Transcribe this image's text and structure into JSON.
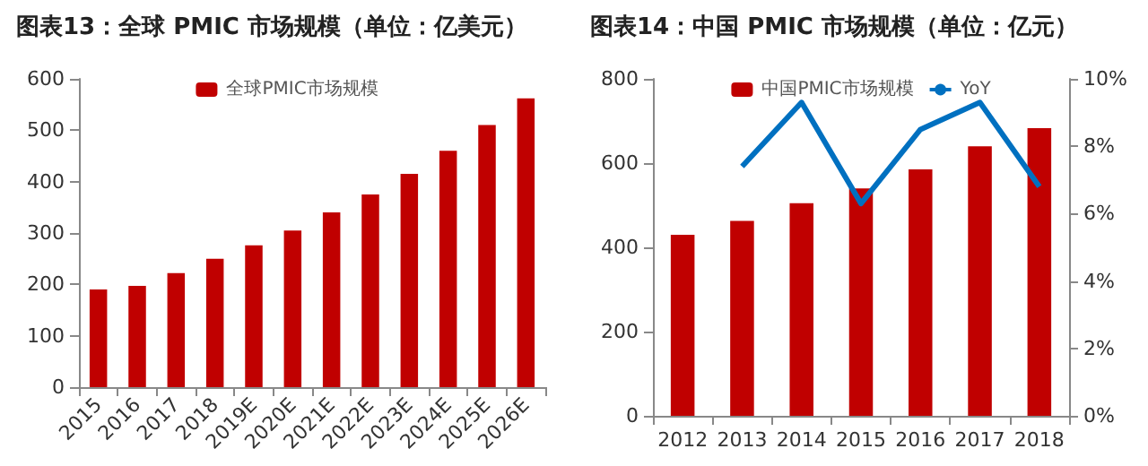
{
  "chart_data": [
    {
      "type": "bar",
      "title": "图表13：全球 PMIC 市场规模（单位：亿美元）",
      "categories": [
        "2015",
        "2016",
        "2017",
        "2018",
        "2019E",
        "2020E",
        "2021E",
        "2022E",
        "2023E",
        "2024E",
        "2025E",
        "2026E"
      ],
      "series": [
        {
          "name": "全球PMIC市场规模",
          "color": "#c00000",
          "values": [
            190,
            197,
            222,
            250,
            276,
            305,
            340,
            375,
            415,
            460,
            510,
            562
          ]
        }
      ],
      "ylim": [
        0,
        600
      ],
      "yticks": [
        0,
        100,
        200,
        300,
        400,
        500,
        600
      ],
      "grid": false,
      "legend": "top"
    },
    {
      "type": "bar",
      "title": "图表14：中国 PMIC 市场规模（单位：亿元）",
      "categories": [
        "2012",
        "2013",
        "2014",
        "2015",
        "2016",
        "2017",
        "2018"
      ],
      "series": [
        {
          "name": "中国PMIC市场规模",
          "color": "#c00000",
          "values": [
            430,
            463,
            505,
            540,
            585,
            640,
            683
          ]
        },
        {
          "name": "YoY",
          "type": "line",
          "axis": "y2",
          "color": "#0070c0",
          "values": [
            null,
            7.4,
            9.3,
            6.3,
            8.5,
            9.3,
            6.8
          ]
        }
      ],
      "ylim": [
        0,
        800
      ],
      "yticks": [
        0,
        200,
        400,
        600,
        800
      ],
      "y2lim": [
        0,
        10
      ],
      "y2ticks": [
        {
          "value": 0,
          "label": "0%"
        },
        {
          "value": 2,
          "label": "2%"
        },
        {
          "value": 4,
          "label": "4%"
        },
        {
          "value": 6,
          "label": "6%"
        },
        {
          "value": 8,
          "label": "8%"
        },
        {
          "value": 10,
          "label": "10%"
        }
      ],
      "grid": false,
      "legend": "top",
      "marker": "none"
    }
  ]
}
